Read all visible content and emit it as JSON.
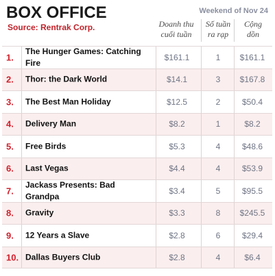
{
  "header": {
    "title": "BOX OFFICE",
    "source": "Source: Rentrak Corp.",
    "weekend": "Weekend of Nov 24"
  },
  "columns": {
    "gross_line1": "Doanh thu",
    "gross_line2": "cuối tuần",
    "weeks_line1": "Số tuần",
    "weeks_line2": "ra rạp",
    "total_line1": "Cộng",
    "total_line2": "dồn"
  },
  "colors": {
    "rank": "#d21f2b",
    "source": "#c0222a",
    "alt_row": "#fbeeee"
  },
  "rows": [
    {
      "rank": "1.",
      "film": "The Hunger Games: Catching Fire",
      "gross": "$161.1",
      "weeks": "1",
      "total": "$161.1"
    },
    {
      "rank": "2.",
      "film": "Thor: the Dark World",
      "gross": "$14.1",
      "weeks": "3",
      "total": "$167.8"
    },
    {
      "rank": "3.",
      "film": "The Best Man Holiday",
      "gross": "$12.5",
      "weeks": "2",
      "total": "$50.4"
    },
    {
      "rank": "4.",
      "film": "Delivery Man",
      "gross": "$8.2",
      "weeks": "1",
      "total": "$8.2"
    },
    {
      "rank": "5.",
      "film": "Free Birds",
      "gross": "$5.3",
      "weeks": "4",
      "total": "$48.6"
    },
    {
      "rank": "6.",
      "film": "Last Vegas",
      "gross": "$4.4",
      "weeks": "4",
      "total": "$53.9"
    },
    {
      "rank": "7.",
      "film": "Jackass Presents: Bad Grandpa",
      "gross": "$3.4",
      "weeks": "5",
      "total": "$95.5"
    },
    {
      "rank": "8.",
      "film": "Gravity",
      "gross": "$3.3",
      "weeks": "8",
      "total": "$245.5"
    },
    {
      "rank": "9.",
      "film": "12 Years a Slave",
      "gross": "$2.8",
      "weeks": "6",
      "total": "$29.4"
    },
    {
      "rank": "10.",
      "film": "Dallas Buyers Club",
      "gross": "$2.8",
      "weeks": "4",
      "total": "$6.4"
    }
  ]
}
